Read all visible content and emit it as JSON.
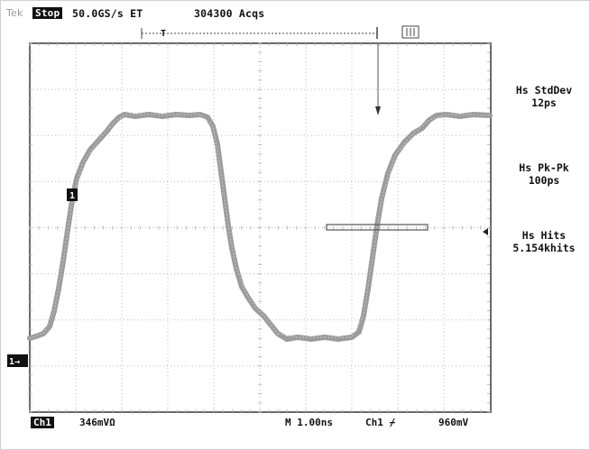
{
  "status": {
    "brand": "Tek",
    "run_state": "Stop",
    "sample_rate": "50.0GS/s ET",
    "acquisitions": "304300 Acqs"
  },
  "markers": {
    "trigger_position": "T",
    "record_indicator": "[||]"
  },
  "screen": {
    "channel_marker": "1",
    "ground_marker": "1→"
  },
  "measurements": [
    {
      "name": "Hs StdDev",
      "value": "12ps"
    },
    {
      "name": "Hs Pk-Pk",
      "value": "100ps"
    },
    {
      "name": "Hs Hits",
      "value": "5.154khits"
    }
  ],
  "bottom": {
    "channel": "Ch1",
    "channel_scale": "346mVΩ",
    "timebase": "M 1.00ns",
    "trigger_source": "Ch1 ⌿",
    "trigger_level": "960mV"
  },
  "colors": {
    "waveform": "#9c9c9c",
    "graticule": "#bdbdbd",
    "frame": "#6a6a6a",
    "text": "#111111"
  }
}
